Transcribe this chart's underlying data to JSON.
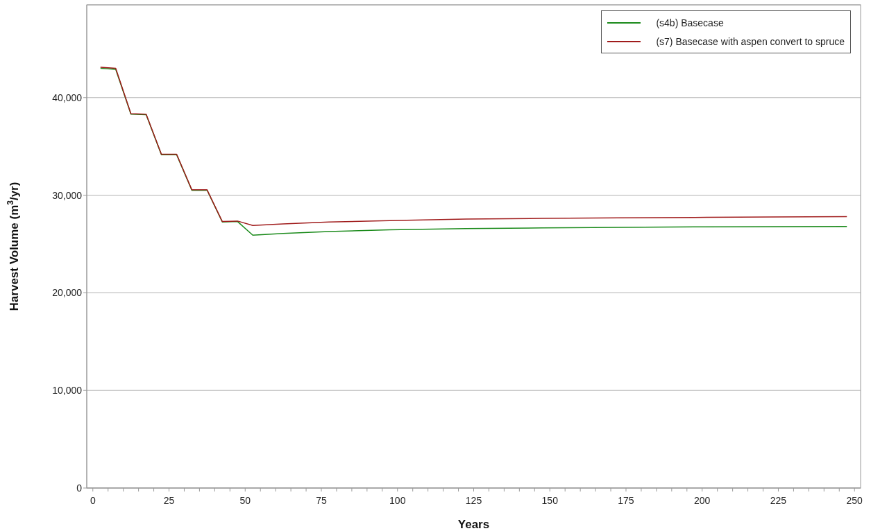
{
  "chart_data": {
    "type": "line",
    "xlabel": "Years",
    "ylabel": "Harvest Volume (m$^{3}$/yr)",
    "x": [
      2.5,
      7.5,
      12.5,
      17.5,
      22.5,
      27.5,
      32.5,
      37.5,
      42.5,
      47.5,
      52.5,
      62.5,
      77.5,
      97.5,
      122.5,
      147.5,
      172.5,
      197.5,
      222.5,
      247.5
    ],
    "series": [
      {
        "name": "(s4b) Basecase",
        "color": "#1a8a1a",
        "values": [
          43000,
          42900,
          38300,
          38250,
          34150,
          34150,
          30500,
          30500,
          27250,
          27300,
          25900,
          26080,
          26280,
          26450,
          26580,
          26650,
          26700,
          26750,
          26780,
          26800
        ]
      },
      {
        "name": "(s7) Basecase with aspen convert to spruce",
        "color": "#a01c1c",
        "values": [
          43100,
          43000,
          38350,
          38300,
          34200,
          34200,
          30550,
          30550,
          27300,
          27350,
          26900,
          27050,
          27250,
          27400,
          27550,
          27620,
          27680,
          27720,
          27760,
          27800
        ]
      }
    ],
    "xlim": [
      -2,
      252
    ],
    "xticks": [
      0,
      {
        "value": 5,
        "label": null
      },
      {
        "value": 10,
        "label": null
      },
      {
        "value": 15,
        "label": null
      },
      {
        "value": 20,
        "label": null
      },
      25,
      {
        "value": 30,
        "label": null
      },
      {
        "value": 35,
        "label": null
      },
      {
        "value": 40,
        "label": null
      },
      {
        "value": 45,
        "label": null
      },
      50,
      {
        "value": 55,
        "label": null
      },
      {
        "value": 60,
        "label": null
      },
      {
        "value": 65,
        "label": null
      },
      {
        "value": 70,
        "label": null
      },
      75,
      {
        "value": 80,
        "label": null
      },
      {
        "value": 85,
        "label": null
      },
      {
        "value": 90,
        "label": null
      },
      {
        "value": 95,
        "label": null
      },
      100,
      {
        "value": 105,
        "label": null
      },
      {
        "value": 110,
        "label": null
      },
      {
        "value": 115,
        "label": null
      },
      {
        "value": 120,
        "label": null
      },
      125,
      {
        "value": 130,
        "label": null
      },
      {
        "value": 135,
        "label": null
      },
      {
        "value": 140,
        "label": null
      },
      {
        "value": 145,
        "label": null
      },
      150,
      {
        "value": 155,
        "label": null
      },
      {
        "value": 160,
        "label": null
      },
      {
        "value": 165,
        "label": null
      },
      {
        "value": 170,
        "label": null
      },
      175,
      {
        "value": 180,
        "label": null
      },
      {
        "value": 185,
        "label": null
      },
      {
        "value": 190,
        "label": null
      },
      {
        "value": 195,
        "label": null
      },
      200,
      {
        "value": 205,
        "label": null
      },
      {
        "value": 210,
        "label": null
      },
      {
        "value": 215,
        "label": null
      },
      {
        "value": 220,
        "label": null
      },
      225,
      {
        "value": 230,
        "label": null
      },
      {
        "value": 235,
        "label": null
      },
      {
        "value": 240,
        "label": null
      },
      {
        "value": 245,
        "label": null
      },
      250
    ],
    "ylim": [
      0,
      49500
    ],
    "yticks": [
      {
        "value": 0,
        "label": "0"
      },
      {
        "value": 10000,
        "label": "10,000"
      },
      {
        "value": 20000,
        "label": "20,000"
      },
      {
        "value": 30000,
        "label": "30,000"
      },
      {
        "value": 40000,
        "label": "40,000"
      }
    ],
    "grid": "y",
    "legend": "top right",
    "marker": "none",
    "line_style": "solid"
  }
}
